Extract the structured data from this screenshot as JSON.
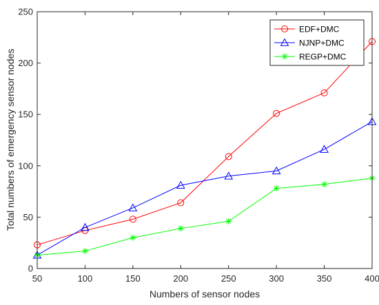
{
  "chart_data": {
    "type": "line",
    "title": "",
    "xlabel": "Numbers of sensor nodes",
    "ylabel": "Total numbers of emergency sensor nodes",
    "x": [
      50,
      100,
      150,
      200,
      250,
      300,
      350,
      400
    ],
    "xlim": [
      50,
      400
    ],
    "ylim": [
      0,
      250
    ],
    "xticks": [
      "50",
      "100",
      "150",
      "200",
      "250",
      "300",
      "350",
      "400"
    ],
    "yticks": [
      "0",
      "50",
      "100",
      "150",
      "200",
      "250"
    ],
    "grid": false,
    "legend_position": "top-right",
    "series": [
      {
        "name": "EDF+DMC",
        "color": "#ff0000",
        "marker": "circle",
        "values": [
          23,
          37,
          48,
          64,
          109,
          151,
          171,
          221
        ]
      },
      {
        "name": "NJNP+DMC",
        "color": "#0000ff",
        "marker": "triangle",
        "values": [
          13,
          40,
          59,
          81,
          90,
          95,
          116,
          143
        ]
      },
      {
        "name": "REGP+DMC",
        "color": "#00ff00",
        "marker": "asterisk",
        "values": [
          13,
          17,
          30,
          39,
          46,
          78,
          82,
          88
        ]
      }
    ]
  }
}
